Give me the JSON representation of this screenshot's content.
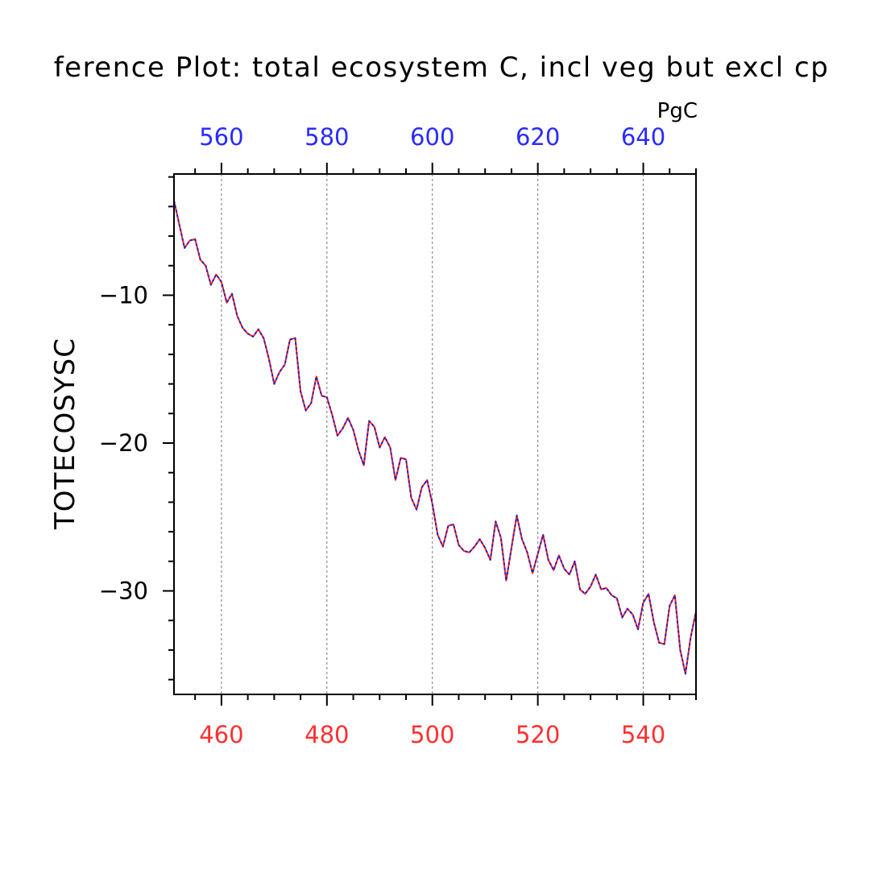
{
  "chart_data": {
    "type": "line",
    "title": "ference Plot: total ecosystem C, incl veg but excl cp",
    "ylabel": "TOTECOSYSC",
    "top_axis_unit": "PgC",
    "bottom_axis": {
      "range": [
        451,
        550
      ],
      "tick_values": [
        460,
        480,
        500,
        520,
        540
      ],
      "tick_labels": [
        "460",
        "480",
        "500",
        "520",
        "540"
      ],
      "color": "#ff3030"
    },
    "top_axis": {
      "range": [
        551,
        650
      ],
      "tick_values": [
        560,
        580,
        600,
        620,
        640
      ],
      "tick_labels": [
        "560",
        "580",
        "600",
        "620",
        "640"
      ],
      "color": "#2a2aff"
    },
    "left_axis": {
      "range": [
        -37,
        -1.8
      ],
      "tick_values": [
        -10,
        -20,
        -30
      ],
      "tick_labels": [
        "−10",
        "−20",
        "−30"
      ]
    },
    "grid": "vertical dashed at major x ticks",
    "series": [
      {
        "color": "#ff2020",
        "style": "solid",
        "x": [
          451,
          452,
          453,
          454,
          455,
          456,
          457,
          458,
          459,
          460,
          461,
          462,
          463,
          464,
          465,
          466,
          467,
          468,
          469,
          470,
          471,
          472,
          473,
          474,
          475,
          476,
          477,
          478,
          479,
          480,
          481,
          482,
          483,
          484,
          485,
          486,
          487,
          488,
          489,
          490,
          491,
          492,
          493,
          494,
          495,
          496,
          497,
          498,
          499,
          500,
          501,
          502,
          503,
          504,
          505,
          506,
          507,
          508,
          509,
          510,
          511,
          512,
          513,
          514,
          515,
          516,
          517,
          518,
          519,
          520,
          521,
          522,
          523,
          524,
          525,
          526,
          527,
          528,
          529,
          530,
          531,
          532,
          533,
          534,
          535,
          536,
          537,
          538,
          539,
          540,
          541,
          542,
          543,
          544,
          545,
          546,
          547,
          548,
          549,
          550
        ],
        "values": [
          -3.6,
          -5.2,
          -6.8,
          -6.3,
          -6.2,
          -7.6,
          -8.0,
          -9.3,
          -8.6,
          -9.1,
          -10.5,
          -9.9,
          -11.4,
          -12.2,
          -12.6,
          -12.8,
          -12.3,
          -12.9,
          -14.3,
          -16.0,
          -15.2,
          -14.7,
          -13.0,
          -12.9,
          -16.5,
          -17.8,
          -17.3,
          -15.5,
          -16.8,
          -16.9,
          -18.1,
          -19.5,
          -19.0,
          -18.3,
          -19.1,
          -20.5,
          -21.5,
          -18.5,
          -18.9,
          -20.3,
          -19.6,
          -20.3,
          -22.5,
          -21.0,
          -21.1,
          -23.7,
          -24.5,
          -23.0,
          -22.5,
          -24.1,
          -26.2,
          -27.0,
          -25.6,
          -25.5,
          -26.9,
          -27.3,
          -27.4,
          -27.0,
          -26.5,
          -27.1,
          -27.9,
          -25.3,
          -26.4,
          -29.3,
          -27.1,
          -24.9,
          -26.5,
          -27.4,
          -28.8,
          -27.5,
          -26.2,
          -27.9,
          -28.6,
          -27.6,
          -28.5,
          -28.9,
          -28.0,
          -29.9,
          -30.2,
          -29.7,
          -28.9,
          -29.9,
          -29.8,
          -30.3,
          -30.5,
          -31.8,
          -31.2,
          -31.6,
          -32.6,
          -30.8,
          -30.2,
          -32.1,
          -33.5,
          -33.6,
          -31.0,
          -30.3,
          -34.0,
          -35.6,
          -33.1,
          -31.4
        ]
      },
      {
        "color": "#2020c8",
        "style": "dashed",
        "x": [
          451,
          452,
          453,
          454,
          455,
          456,
          457,
          458,
          459,
          460,
          461,
          462,
          463,
          464,
          465,
          466,
          467,
          468,
          469,
          470,
          471,
          472,
          473,
          474,
          475,
          476,
          477,
          478,
          479,
          480,
          481,
          482,
          483,
          484,
          485,
          486,
          487,
          488,
          489,
          490,
          491,
          492,
          493,
          494,
          495,
          496,
          497,
          498,
          499,
          500,
          501,
          502,
          503,
          504,
          505,
          506,
          507,
          508,
          509,
          510,
          511,
          512,
          513,
          514,
          515,
          516,
          517,
          518,
          519,
          520,
          521,
          522,
          523,
          524,
          525,
          526,
          527,
          528,
          529,
          530,
          531,
          532,
          533,
          534,
          535,
          536,
          537,
          538,
          539,
          540,
          541,
          542,
          543,
          544,
          545,
          546,
          547,
          548,
          549,
          550
        ],
        "values": [
          -3.6,
          -5.2,
          -6.8,
          -6.3,
          -6.2,
          -7.6,
          -8.0,
          -9.3,
          -8.6,
          -9.1,
          -10.5,
          -9.9,
          -11.4,
          -12.2,
          -12.6,
          -12.8,
          -12.3,
          -12.9,
          -14.3,
          -16.0,
          -15.2,
          -14.7,
          -13.0,
          -12.9,
          -16.5,
          -17.8,
          -17.3,
          -15.5,
          -16.8,
          -16.9,
          -18.1,
          -19.5,
          -19.0,
          -18.3,
          -19.1,
          -20.5,
          -21.5,
          -18.5,
          -18.9,
          -20.3,
          -19.6,
          -20.3,
          -22.5,
          -21.0,
          -21.1,
          -23.7,
          -24.5,
          -23.0,
          -22.5,
          -24.1,
          -26.2,
          -27.0,
          -25.6,
          -25.5,
          -26.9,
          -27.3,
          -27.4,
          -27.0,
          -26.5,
          -27.1,
          -27.9,
          -25.3,
          -26.4,
          -29.3,
          -27.1,
          -24.9,
          -26.5,
          -27.4,
          -28.8,
          -27.5,
          -26.2,
          -27.9,
          -28.6,
          -27.6,
          -28.5,
          -28.9,
          -28.0,
          -29.9,
          -30.2,
          -29.7,
          -28.9,
          -29.9,
          -29.8,
          -30.3,
          -30.5,
          -31.8,
          -31.2,
          -31.6,
          -32.6,
          -30.8,
          -30.2,
          -32.1,
          -33.5,
          -33.6,
          -31.0,
          -30.3,
          -34.0,
          -35.6,
          -33.1,
          -31.4
        ]
      }
    ]
  }
}
